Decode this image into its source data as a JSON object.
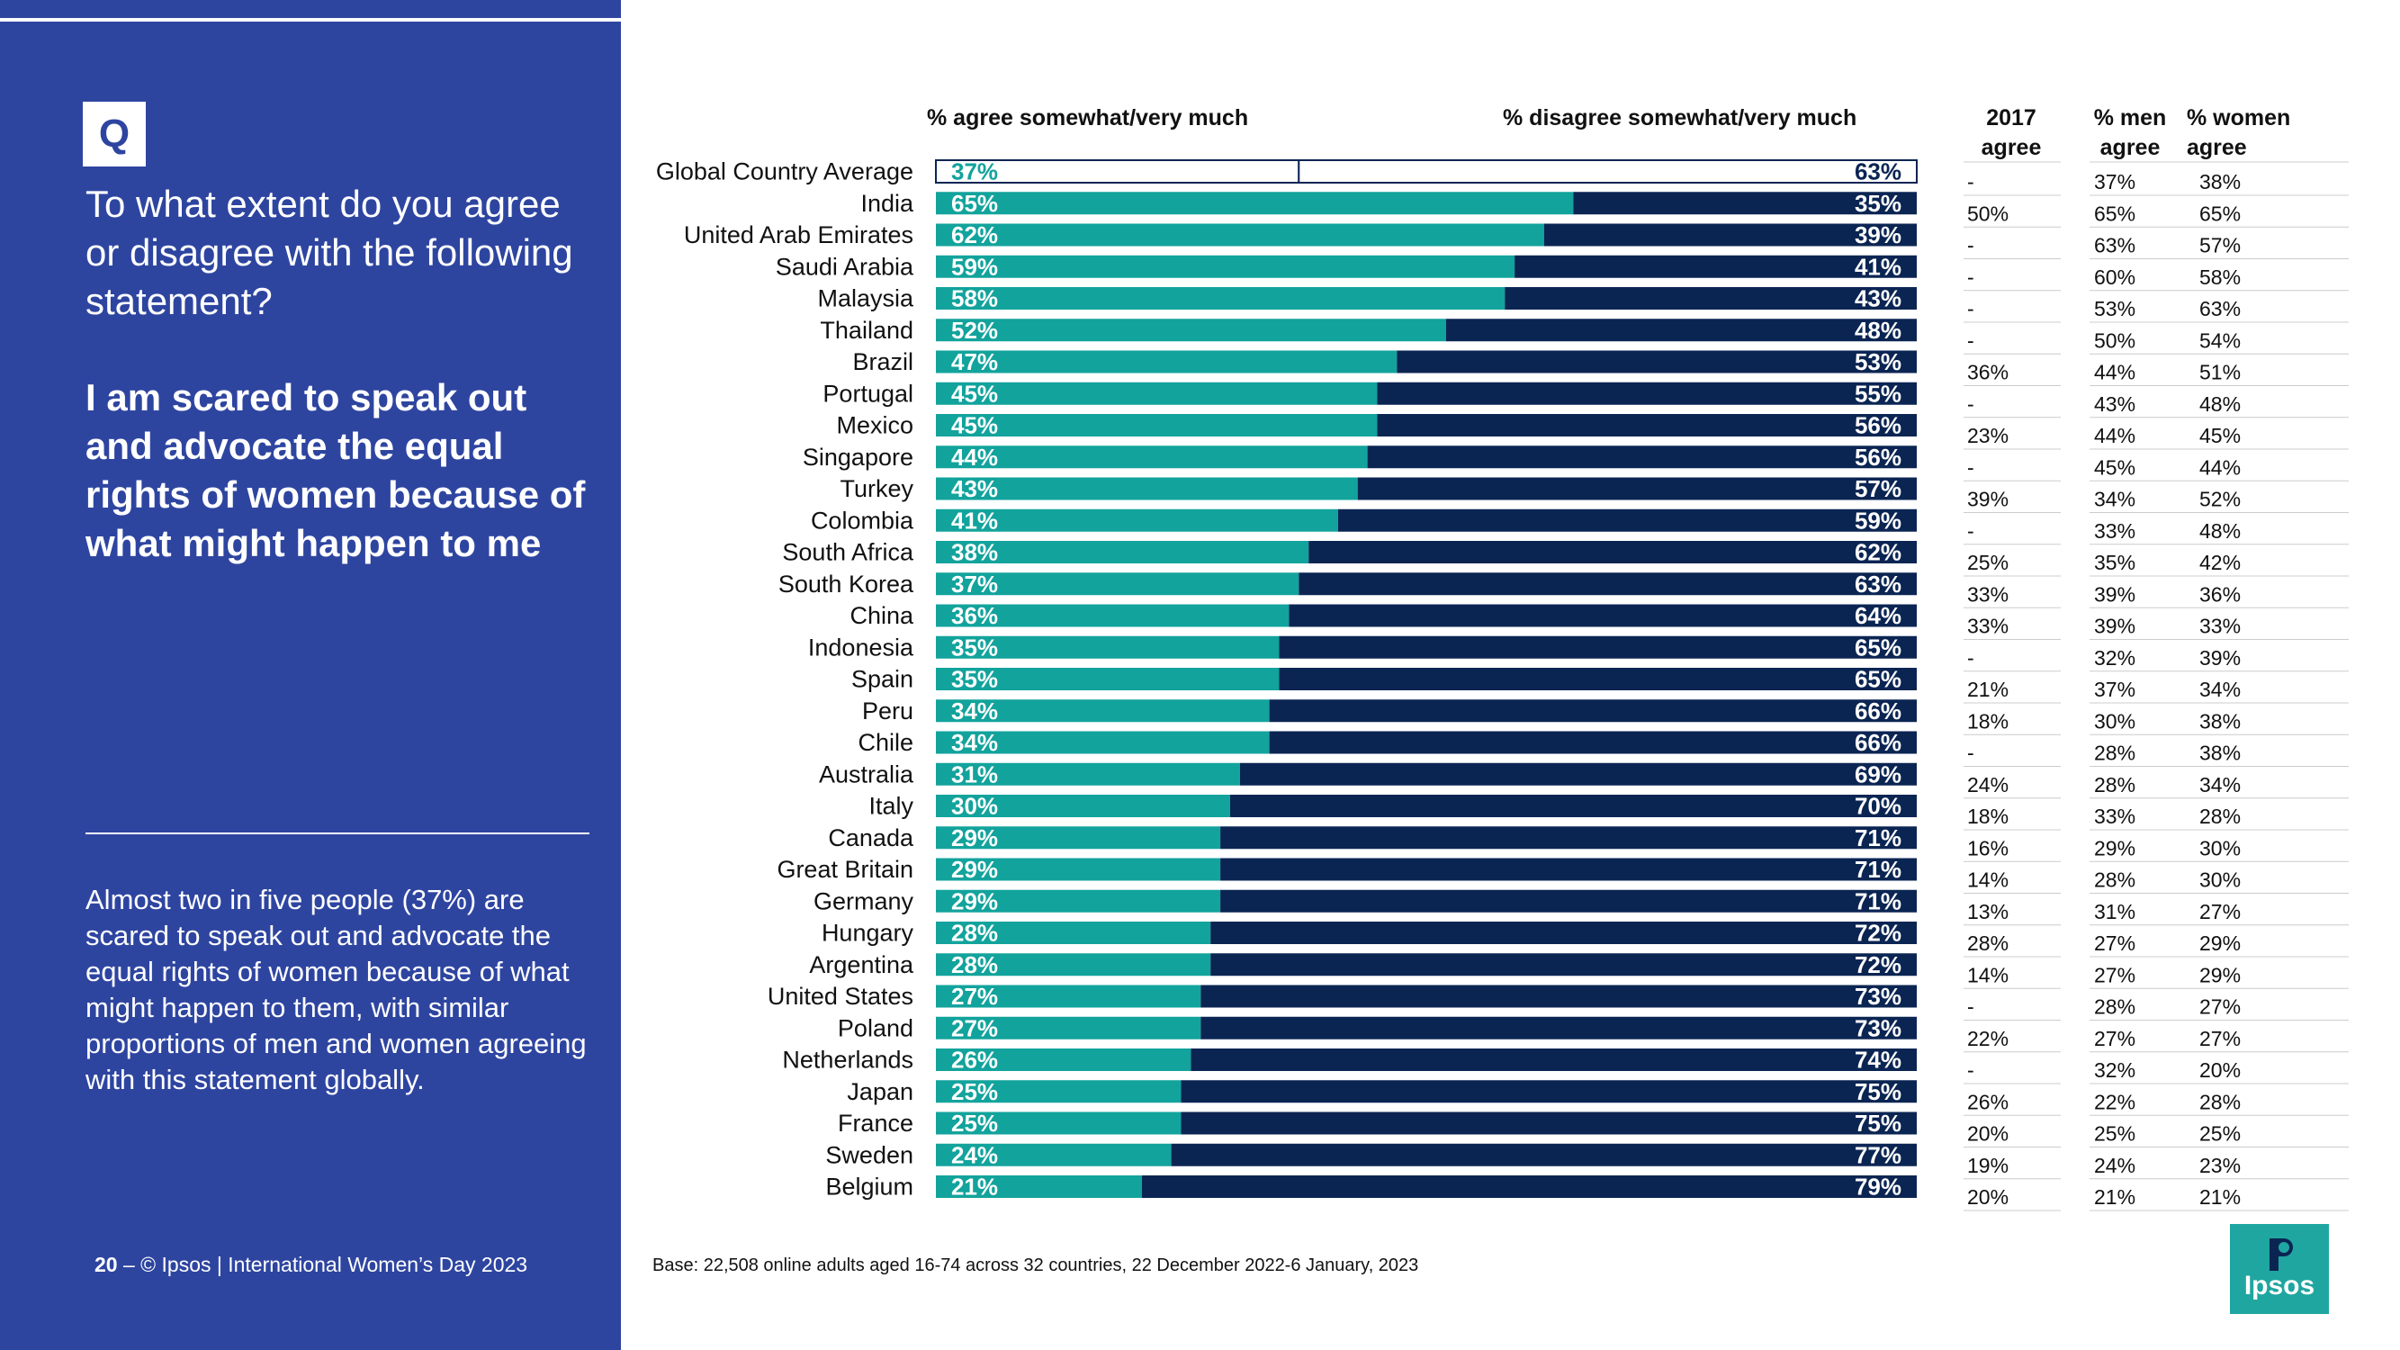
{
  "left_panel": {
    "q_label": "Q",
    "question": "To what extent do you agree or disagree with the following statement?",
    "statement": "I am scared to speak out and advocate the equal rights of women because of what might happen to me",
    "summary": "Almost two in five people (37%) are scared to speak out and advocate the equal rights of women because of what might happen to them, with similar proportions of men and women agreeing with this statement globally.",
    "page_number": "20",
    "page_sep": "–",
    "footer": "© Ipsos | International Women’s Day 2023"
  },
  "base_note": "Base: 22,508 online adults aged 16-74 across 32 countries, 22 December 2022-6 January, 2023",
  "logo_text": "Ipsos",
  "colors": {
    "panel": "#2E45A0",
    "agree": "#12A39C",
    "disagree": "#0B2553",
    "global_agree": "#ffffff",
    "global_border": "#0B2553",
    "logo": "#1FA6A0"
  },
  "chart_data": {
    "type": "bar",
    "orientation": "horizontal",
    "stacked": true,
    "series_labels": {
      "agree": "% agree somewhat/very much",
      "disagree": "% disagree somewhat/very much"
    },
    "table_headers": {
      "y2017": "2017 agree",
      "men": "% men agree",
      "women": "% women agree"
    },
    "xlim": [
      0,
      100
    ],
    "rows": [
      {
        "country": "Global Country Average",
        "agree": 37,
        "disagree": 63,
        "y2017": "-",
        "men": "37%",
        "women": "38%"
      },
      {
        "country": "India",
        "agree": 65,
        "disagree": 35,
        "y2017": "50%",
        "men": "65%",
        "women": "65%"
      },
      {
        "country": "United Arab Emirates",
        "agree": 62,
        "disagree": 39,
        "y2017": "-",
        "men": "63%",
        "women": "57%"
      },
      {
        "country": "Saudi Arabia",
        "agree": 59,
        "disagree": 41,
        "y2017": "-",
        "men": "60%",
        "women": "58%"
      },
      {
        "country": "Malaysia",
        "agree": 58,
        "disagree": 43,
        "y2017": "-",
        "men": "53%",
        "women": "63%"
      },
      {
        "country": "Thailand",
        "agree": 52,
        "disagree": 48,
        "y2017": "-",
        "men": "50%",
        "women": "54%"
      },
      {
        "country": "Brazil",
        "agree": 47,
        "disagree": 53,
        "y2017": "36%",
        "men": "44%",
        "women": "51%"
      },
      {
        "country": "Portugal",
        "agree": 45,
        "disagree": 55,
        "y2017": "-",
        "men": "43%",
        "women": "48%"
      },
      {
        "country": "Mexico",
        "agree": 45,
        "disagree": 56,
        "y2017": "23%",
        "men": "44%",
        "women": "45%"
      },
      {
        "country": "Singapore",
        "agree": 44,
        "disagree": 56,
        "y2017": "-",
        "men": "45%",
        "women": "44%"
      },
      {
        "country": "Turkey",
        "agree": 43,
        "disagree": 57,
        "y2017": "39%",
        "men": "34%",
        "women": "52%"
      },
      {
        "country": "Colombia",
        "agree": 41,
        "disagree": 59,
        "y2017": "-",
        "men": "33%",
        "women": "48%"
      },
      {
        "country": "South Africa",
        "agree": 38,
        "disagree": 62,
        "y2017": "25%",
        "men": "35%",
        "women": "42%"
      },
      {
        "country": "South Korea",
        "agree": 37,
        "disagree": 63,
        "y2017": "33%",
        "men": "39%",
        "women": "36%"
      },
      {
        "country": "China",
        "agree": 36,
        "disagree": 64,
        "y2017": "33%",
        "men": "39%",
        "women": "33%"
      },
      {
        "country": "Indonesia",
        "agree": 35,
        "disagree": 65,
        "y2017": "-",
        "men": "32%",
        "women": "39%"
      },
      {
        "country": "Spain",
        "agree": 35,
        "disagree": 65,
        "y2017": "21%",
        "men": "37%",
        "women": "34%"
      },
      {
        "country": "Peru",
        "agree": 34,
        "disagree": 66,
        "y2017": "18%",
        "men": "30%",
        "women": "38%"
      },
      {
        "country": "Chile",
        "agree": 34,
        "disagree": 66,
        "y2017": "-",
        "men": "28%",
        "women": "38%"
      },
      {
        "country": "Australia",
        "agree": 31,
        "disagree": 69,
        "y2017": "24%",
        "men": "28%",
        "women": "34%"
      },
      {
        "country": "Italy",
        "agree": 30,
        "disagree": 70,
        "y2017": "18%",
        "men": "33%",
        "women": "28%"
      },
      {
        "country": "Canada",
        "agree": 29,
        "disagree": 71,
        "y2017": "16%",
        "men": "29%",
        "women": "30%"
      },
      {
        "country": "Great Britain",
        "agree": 29,
        "disagree": 71,
        "y2017": "14%",
        "men": "28%",
        "women": "30%"
      },
      {
        "country": "Germany",
        "agree": 29,
        "disagree": 71,
        "y2017": "13%",
        "men": "31%",
        "women": "27%"
      },
      {
        "country": "Hungary",
        "agree": 28,
        "disagree": 72,
        "y2017": "28%",
        "men": "27%",
        "women": "29%"
      },
      {
        "country": "Argentina",
        "agree": 28,
        "disagree": 72,
        "y2017": "14%",
        "men": "27%",
        "women": "29%"
      },
      {
        "country": "United States",
        "agree": 27,
        "disagree": 73,
        "y2017": "-",
        "men": "28%",
        "women": "27%"
      },
      {
        "country": "Poland",
        "agree": 27,
        "disagree": 73,
        "y2017": "22%",
        "men": "27%",
        "women": "27%"
      },
      {
        "country": "Netherlands",
        "agree": 26,
        "disagree": 74,
        "y2017": "-",
        "men": "32%",
        "women": "20%"
      },
      {
        "country": "Japan",
        "agree": 25,
        "disagree": 75,
        "y2017": "26%",
        "men": "22%",
        "women": "28%"
      },
      {
        "country": "France",
        "agree": 25,
        "disagree": 75,
        "y2017": "20%",
        "men": "25%",
        "women": "25%"
      },
      {
        "country": "Sweden",
        "agree": 24,
        "disagree": 77,
        "y2017": "19%",
        "men": "24%",
        "women": "23%"
      },
      {
        "country": "Belgium",
        "agree": 21,
        "disagree": 79,
        "y2017": "20%",
        "men": "21%",
        "women": "21%"
      }
    ]
  }
}
